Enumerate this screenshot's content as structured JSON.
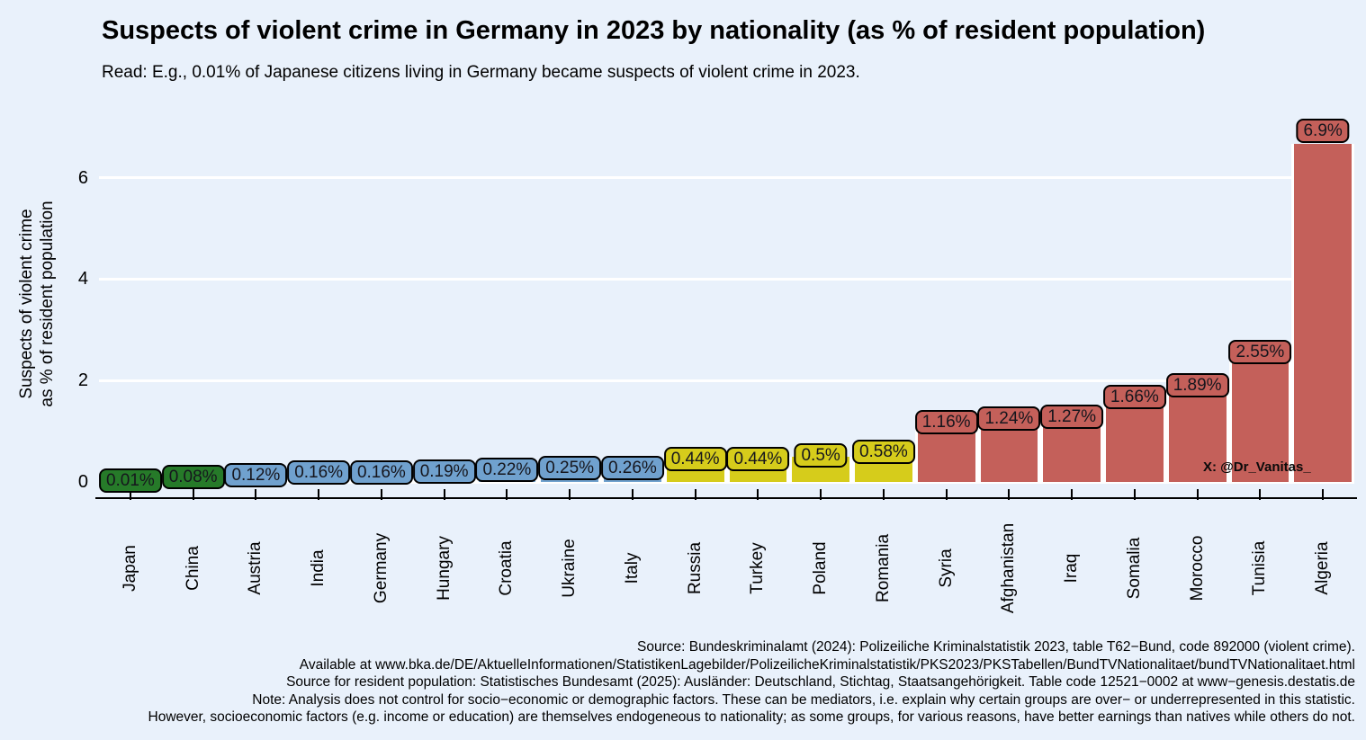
{
  "chart": {
    "title": "Suspects of violent crime in Germany in 2023 by nationality (as % of resident population)",
    "subtitle": "Read: E.g., 0.01% of Japanese citizens living in Germany became suspects of violent crime in 2023.",
    "y_axis_title_line1": "Suspects of violent crime",
    "y_axis_title_line2": "as % of resident population",
    "watermark": "X: @Dr_Vanitas_"
  },
  "chart_data": {
    "type": "bar",
    "title": "Suspects of violent crime in Germany in 2023 by nationality (as % of resident population)",
    "subtitle": "Read: E.g., 0.01% of Japanese citizens living in Germany became suspects of violent crime in 2023.",
    "xlabel": "",
    "ylabel": "Suspects of violent crime as % of resident population",
    "categories": [
      "Japan",
      "China",
      "Austria",
      "India",
      "Germany",
      "Hungary",
      "Croatia",
      "Ukraine",
      "Italy",
      "Russia",
      "Turkey",
      "Poland",
      "Romania",
      "Syria",
      "Afghanistan",
      "Iraq",
      "Somalia",
      "Morocco",
      "Tunisia",
      "Algeria"
    ],
    "values": [
      0.01,
      0.08,
      0.12,
      0.16,
      0.16,
      0.19,
      0.22,
      0.25,
      0.26,
      0.44,
      0.44,
      0.5,
      0.58,
      1.16,
      1.24,
      1.27,
      1.66,
      1.89,
      2.55,
      6.9
    ],
    "value_labels": [
      "0.01%",
      "0.08%",
      "0.12%",
      "0.16%",
      "0.16%",
      "0.19%",
      "0.22%",
      "0.25%",
      "0.26%",
      "0.44%",
      "0.44%",
      "0.5%",
      "0.58%",
      "1.16%",
      "1.24%",
      "1.27%",
      "1.66%",
      "1.89%",
      "2.55%",
      "6.9%"
    ],
    "color_groups": [
      "green",
      "green",
      "blue",
      "blue",
      "blue",
      "blue",
      "blue",
      "blue",
      "blue",
      "yellow",
      "yellow",
      "yellow",
      "yellow",
      "red",
      "red",
      "red",
      "red",
      "red",
      "red",
      "red"
    ],
    "palette": {
      "green": "#267A29",
      "blue": "#70A1CE",
      "yellow": "#D6CC1B",
      "red": "#C4605A"
    },
    "background_color": "#E9F1FB",
    "gridline_color": "#FFFFFF",
    "yticks": [
      0,
      2,
      4,
      6
    ],
    "ylim": [
      0,
      6.67
    ],
    "grid": "horizontal major gridlines, white",
    "legend_position": "none",
    "note": "Tallest bar (Algeria, 6.9%) is clipped at the top of the panel"
  },
  "footer": {
    "lines": [
      "Source: Bundeskriminalamt (2024): Polizeiliche Kriminalstatistik 2023, table T62−Bund, code 892000 (violent crime).",
      "Available at www.bka.de/DE/AktuelleInformationen/StatistikenLagebilder/PolizeilicheKriminalstatistik/PKS2023/PKSTabellen/BundTVNationalitaet/bundTVNationalitaet.html",
      "Source for resident population: Statistisches Bundesamt (2025): Ausländer: Deutschland, Stichtag, Staatsangehörigkeit. Table code 12521−0002 at www−genesis.destatis.de",
      "Note: Analysis does not control for socio−economic or demographic factors. These can be mediators, i.e. explain why certain groups are over− or underrepresented in this statistic.",
      "However, socioeconomic factors (e.g. income or education) are themselves endogeneous to nationality; as some groups, for various reasons, have better earnings than natives while others do not."
    ]
  }
}
